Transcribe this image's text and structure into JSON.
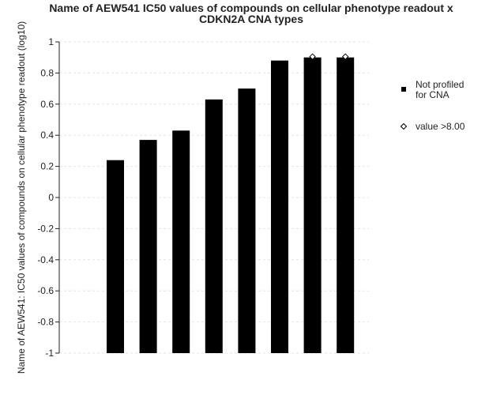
{
  "chart_data": {
    "type": "bar",
    "title_line1": "Name of AEW541 IC50 values of compounds on cellular phenotype readout x",
    "title_line2": "CDKN2A CNA types",
    "ylabel": "Name of AEW541: IC50 values of compounds on cellular phenotype readout (log10)",
    "xlabel": "",
    "ylim": [
      -1,
      1
    ],
    "yticks": [
      1,
      0.8,
      0.6,
      0.4,
      0.2,
      0,
      -0.2,
      -0.4,
      -0.6,
      -0.8,
      -1
    ],
    "grid": true,
    "legend_position": "right",
    "values": [
      0.24,
      0.37,
      0.43,
      0.63,
      0.7,
      0.88,
      0.9,
      0.9
    ],
    "above_threshold": [
      false,
      false,
      false,
      false,
      false,
      false,
      true,
      true
    ],
    "series": [
      {
        "name": "Not profiled for CNA",
        "label_lines": [
          "Not profiled",
          "for CNA"
        ],
        "color": "#000000"
      }
    ],
    "markers": [
      {
        "name": "value >8.00",
        "symbol": "diamond-open"
      }
    ]
  }
}
